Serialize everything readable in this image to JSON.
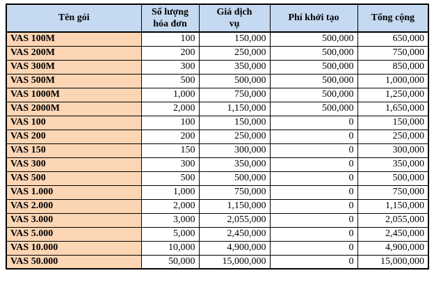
{
  "table": {
    "columns": [
      "Tên gói",
      "Số lượng\nhóa đơn",
      "Giá dịch\nvụ",
      "Phí khởi tạo",
      "Tổng cộng"
    ],
    "rows": [
      [
        "VAS 100M",
        "100",
        "150,000",
        "500,000",
        "650,000"
      ],
      [
        "VAS 200M",
        "200",
        "250,000",
        "500,000",
        "750,000"
      ],
      [
        "VAS 300M",
        "300",
        "350,000",
        "500,000",
        "850,000"
      ],
      [
        "VAS 500M",
        "500",
        "500,000",
        "500,000",
        "1,000,000"
      ],
      [
        "VAS 1000M",
        "1,000",
        "750,000",
        "500,000",
        "1,250,000"
      ],
      [
        "VAS 2000M",
        "2,000",
        "1,150,000",
        "500,000",
        "1,650,000"
      ],
      [
        "VAS 100",
        "100",
        "150,000",
        "0",
        "150,000"
      ],
      [
        "VAS 200",
        "200",
        "250,000",
        "0",
        "250,000"
      ],
      [
        "VAS 150",
        "150",
        "300,000",
        "0",
        "300,000"
      ],
      [
        "VAS 300",
        "300",
        "350,000",
        "0",
        "350,000"
      ],
      [
        "VAS 500",
        "500",
        "500,000",
        "0",
        "500,000"
      ],
      [
        "VAS 1.000",
        "1,000",
        "750,000",
        "0",
        "750,000"
      ],
      [
        "VAS 2.000",
        "2,000",
        "1,150,000",
        "0",
        "1,150,000"
      ],
      [
        "VAS 3.000",
        "3,000",
        "2,055,000",
        "0",
        "2,055,000"
      ],
      [
        "VAS 5.000",
        "5,000",
        "2,450,000",
        "0",
        "2,450,000"
      ],
      [
        "VAS 10.000",
        "10,000",
        "4,900,000",
        "0",
        "4,900,000"
      ],
      [
        "VAS 50.000",
        "50,000",
        "15,000,000",
        "0",
        "15,000,000"
      ]
    ]
  },
  "colors": {
    "header_bg": "#C5D9F1",
    "name_col_bg": "#FCD5B4",
    "border": "#000000"
  }
}
